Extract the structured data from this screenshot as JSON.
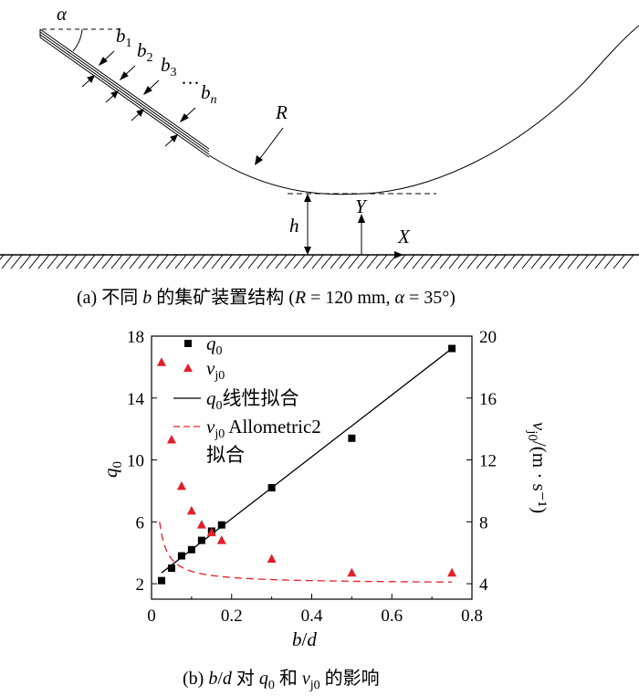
{
  "panel_a": {
    "caption_prefix": "(a)  不同 ",
    "caption_var": "b",
    "caption_mid": " 的集矿装置结构 (",
    "caption_R": "R",
    "caption_r_value": " = 120 mm, ",
    "caption_alpha": "α",
    "caption_alpha_value": " = 35°)",
    "labels": {
      "alpha": "α",
      "b": "b",
      "sub1": "1",
      "sub2": "2",
      "sub3": "3",
      "subn": "n",
      "dots": "···",
      "R": "R",
      "h": "h",
      "Y": "Y",
      "X": "X"
    },
    "colors": {
      "line": "#000000"
    }
  },
  "panel_b": {
    "caption_prefix": "(b)  ",
    "caption_bd": "b",
    "caption_slash": "/",
    "caption_d": "d",
    "caption_mid": " 对 ",
    "caption_q": "q",
    "caption_q_sub": "0",
    "caption_and": " 和 ",
    "caption_v": "v",
    "caption_v_sub": "j0",
    "caption_end": " 的影响"
  },
  "chart_data": {
    "type": "scatter",
    "x_label": {
      "b": "b",
      "slash": "/",
      "d": "d"
    },
    "y_label": {
      "q": "q",
      "sub": "0"
    },
    "y2_label": {
      "v": "v",
      "sub": "j0",
      "unit": "/(m · s⁻¹)"
    },
    "xlim": [
      0,
      0.8
    ],
    "ylim": [
      1,
      18
    ],
    "y2lim": [
      3,
      20
    ],
    "x_ticks": [
      "0",
      "0.2",
      "0.4",
      "0.6",
      "0.8"
    ],
    "y_ticks": [
      "2",
      "6",
      "10",
      "14",
      "18"
    ],
    "y2_ticks": [
      "4",
      "8",
      "12",
      "16",
      "20"
    ],
    "x_tick_values": [
      0,
      0.2,
      0.4,
      0.6,
      0.8
    ],
    "y_tick_values": [
      2,
      6,
      10,
      14,
      18
    ],
    "y2_tick_values": [
      4,
      8,
      12,
      16,
      20
    ],
    "legend": {
      "q_marker": {
        "main": "q",
        "sub": "0"
      },
      "v_marker": {
        "main": "v",
        "sub": "j0"
      },
      "q_fit": {
        "main": "q",
        "sub": "0",
        "rest": "线性拟合"
      },
      "v_fit": {
        "main": "v",
        "sub": "j0",
        "rest": " Allometric2",
        "line2": "拟合"
      },
      "placement": "top-left"
    },
    "series": [
      {
        "name": "q0",
        "axis": "left",
        "marker": "square",
        "color": "#000000",
        "x": [
          0.025,
          0.05,
          0.075,
          0.1,
          0.125,
          0.15,
          0.175,
          0.3,
          0.5,
          0.75
        ],
        "y": [
          2.2,
          3.0,
          3.8,
          4.2,
          4.8,
          5.4,
          5.8,
          8.2,
          11.4,
          17.2
        ]
      },
      {
        "name": "vj0",
        "axis": "right",
        "marker": "triangle",
        "color": "#e0202a",
        "x": [
          0.025,
          0.05,
          0.075,
          0.1,
          0.125,
          0.15,
          0.175,
          0.3,
          0.5,
          0.75
        ],
        "y": [
          18.3,
          13.3,
          10.3,
          8.7,
          7.8,
          7.3,
          6.8,
          5.6,
          4.7,
          4.7
        ]
      }
    ],
    "fits": [
      {
        "name": "q0 linear",
        "axis": "left",
        "style": "solid",
        "color": "#000000",
        "x_range": [
          0.025,
          0.75
        ],
        "intercept": 2.2,
        "slope": 20.0
      },
      {
        "name": "vj0 allometric2",
        "axis": "right",
        "style": "dashed",
        "color": "#e0202a",
        "x_range": [
          0.02,
          0.75
        ],
        "a": 4.0,
        "b": 0.08,
        "c": -1.0
      }
    ]
  }
}
